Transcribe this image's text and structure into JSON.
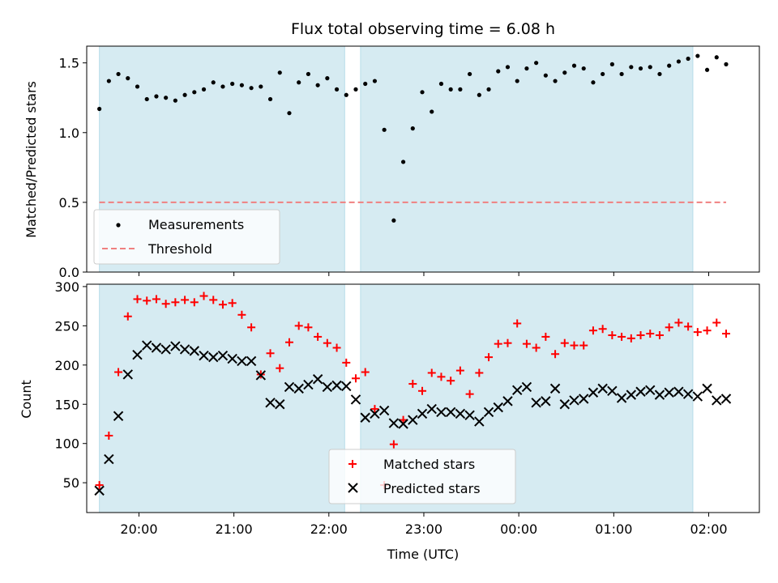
{
  "chart_data": [
    {
      "type": "scatter",
      "title": "Flux total observing time = 6.08 h",
      "xlabel": "",
      "ylabel": "Matched/Predicted stars",
      "xlim": [
        "19:27",
        "02:32"
      ],
      "ylim": [
        0,
        1.62
      ],
      "yticks": [
        "0.0",
        "0.5",
        "1.0",
        "1.5"
      ],
      "yticks_values": [
        0,
        0.5,
        1.0,
        1.5
      ],
      "legend_position": "lower-left",
      "observing_windows": [
        [
          "19:35",
          "22:10"
        ],
        [
          "22:20",
          "01:50"
        ]
      ],
      "series": [
        {
          "name": "Measurements",
          "marker": "dot",
          "color": "#000000",
          "x": [
            "19:35",
            "19:41",
            "19:47",
            "19:53",
            "19:59",
            "20:05",
            "20:11",
            "20:17",
            "20:23",
            "20:29",
            "20:35",
            "20:41",
            "20:47",
            "20:53",
            "20:59",
            "21:05",
            "21:11",
            "21:17",
            "21:23",
            "21:29",
            "21:35",
            "21:41",
            "21:47",
            "21:53",
            "21:59",
            "22:05",
            "22:11",
            "22:17",
            "22:23",
            "22:29",
            "22:35",
            "22:41",
            "22:47",
            "22:53",
            "22:59",
            "23:05",
            "23:11",
            "23:17",
            "23:23",
            "23:29",
            "23:35",
            "23:41",
            "23:47",
            "23:53",
            "23:59",
            "00:05",
            "00:11",
            "00:17",
            "00:23",
            "00:29",
            "00:35",
            "00:41",
            "00:47",
            "00:53",
            "00:59",
            "01:05",
            "01:11",
            "01:17",
            "01:23",
            "01:29",
            "01:35",
            "01:41",
            "01:47",
            "01:53",
            "01:59",
            "02:05",
            "02:11"
          ],
          "y": [
            1.17,
            1.37,
            1.42,
            1.39,
            1.33,
            1.24,
            1.26,
            1.25,
            1.23,
            1.27,
            1.29,
            1.31,
            1.36,
            1.33,
            1.35,
            1.34,
            1.32,
            1.33,
            1.24,
            1.43,
            1.14,
            1.36,
            1.42,
            1.34,
            1.39,
            1.31,
            1.27,
            1.31,
            1.35,
            1.37,
            1.02,
            0.37,
            0.79,
            1.03,
            1.29,
            1.15,
            1.35,
            1.31,
            1.31,
            1.42,
            1.27,
            1.31,
            1.44,
            1.47,
            1.37,
            1.46,
            1.5,
            1.41,
            1.37,
            1.43,
            1.48,
            1.46,
            1.36,
            1.42,
            1.49,
            1.42,
            1.47,
            1.46,
            1.47,
            1.42,
            1.48,
            1.51,
            1.53,
            1.55,
            1.45,
            1.54,
            1.49
          ]
        },
        {
          "name": "Threshold",
          "line": "dashed",
          "color": "#f08080",
          "x": [
            "19:35",
            "02:11"
          ],
          "y": [
            0.5,
            0.5
          ]
        }
      ]
    },
    {
      "type": "scatter",
      "title": "",
      "xlabel": "Time (UTC)",
      "ylabel": "Count",
      "xlim": [
        "19:27",
        "02:32"
      ],
      "ylim": [
        12,
        303
      ],
      "yticks": [
        "50",
        "100",
        "150",
        "200",
        "250",
        "300"
      ],
      "yticks_values": [
        50,
        100,
        150,
        200,
        250,
        300
      ],
      "xticks": [
        "20:00",
        "21:00",
        "22:00",
        "23:00",
        "00:00",
        "01:00",
        "02:00"
      ],
      "legend_position": "lower-center",
      "observing_windows": [
        [
          "19:35",
          "22:10"
        ],
        [
          "22:20",
          "01:50"
        ]
      ],
      "series": [
        {
          "name": "Matched stars",
          "marker": "plus",
          "color": "#ff0000",
          "x": [
            "19:35",
            "19:41",
            "19:47",
            "19:53",
            "19:59",
            "20:05",
            "20:11",
            "20:17",
            "20:23",
            "20:29",
            "20:35",
            "20:41",
            "20:47",
            "20:53",
            "20:59",
            "21:05",
            "21:11",
            "21:17",
            "21:23",
            "21:29",
            "21:35",
            "21:41",
            "21:47",
            "21:53",
            "21:59",
            "22:05",
            "22:11",
            "22:17",
            "22:23",
            "22:29",
            "22:35",
            "22:41",
            "22:47",
            "22:53",
            "22:59",
            "23:05",
            "23:11",
            "23:17",
            "23:23",
            "23:29",
            "23:35",
            "23:41",
            "23:47",
            "23:53",
            "23:59",
            "00:05",
            "00:11",
            "00:17",
            "00:23",
            "00:29",
            "00:35",
            "00:41",
            "00:47",
            "00:53",
            "00:59",
            "01:05",
            "01:11",
            "01:17",
            "01:23",
            "01:29",
            "01:35",
            "01:41",
            "01:47",
            "01:53",
            "01:59",
            "02:05",
            "02:11"
          ],
          "y": [
            47,
            110,
            191,
            262,
            284,
            282,
            284,
            278,
            280,
            283,
            280,
            288,
            283,
            277,
            279,
            264,
            248,
            188,
            215,
            196,
            229,
            250,
            248,
            236,
            228,
            222,
            203,
            183,
            191,
            144,
            47,
            99,
            130,
            176,
            167,
            190,
            185,
            180,
            193,
            163,
            190,
            210,
            227,
            228,
            253,
            227,
            222,
            236,
            214,
            228,
            225,
            225,
            244,
            246,
            238,
            236,
            234,
            238,
            240,
            238,
            248,
            254,
            249,
            242,
            244,
            254,
            240
          ]
        },
        {
          "name": "Predicted stars",
          "marker": "x",
          "color": "#000000",
          "x": [
            "19:35",
            "19:41",
            "19:47",
            "19:53",
            "19:59",
            "20:05",
            "20:11",
            "20:17",
            "20:23",
            "20:29",
            "20:35",
            "20:41",
            "20:47",
            "20:53",
            "20:59",
            "21:05",
            "21:11",
            "21:17",
            "21:23",
            "21:29",
            "21:35",
            "21:41",
            "21:47",
            "21:53",
            "21:59",
            "22:05",
            "22:11",
            "22:17",
            "22:23",
            "22:29",
            "22:35",
            "22:41",
            "22:47",
            "22:53",
            "22:59",
            "23:05",
            "23:11",
            "23:17",
            "23:23",
            "23:29",
            "23:35",
            "23:41",
            "23:47",
            "23:53",
            "23:59",
            "00:05",
            "00:11",
            "00:17",
            "00:23",
            "00:29",
            "00:35",
            "00:41",
            "00:47",
            "00:53",
            "00:59",
            "01:05",
            "01:11",
            "01:17",
            "01:23",
            "01:29",
            "01:35",
            "01:41",
            "01:47",
            "01:53",
            "01:59",
            "02:05",
            "02:11"
          ],
          "y": [
            40,
            80,
            135,
            188,
            213,
            225,
            222,
            220,
            224,
            220,
            218,
            212,
            210,
            212,
            208,
            205,
            205,
            187,
            152,
            150,
            172,
            170,
            175,
            182,
            172,
            174,
            173,
            156,
            133,
            138,
            142,
            126,
            125,
            130,
            138,
            144,
            140,
            140,
            138,
            136,
            128,
            140,
            146,
            154,
            168,
            172,
            152,
            154,
            170,
            150,
            155,
            157,
            165,
            170,
            167,
            158,
            162,
            166,
            168,
            162,
            165,
            166,
            163,
            160,
            170,
            155,
            157
          ]
        }
      ]
    }
  ]
}
